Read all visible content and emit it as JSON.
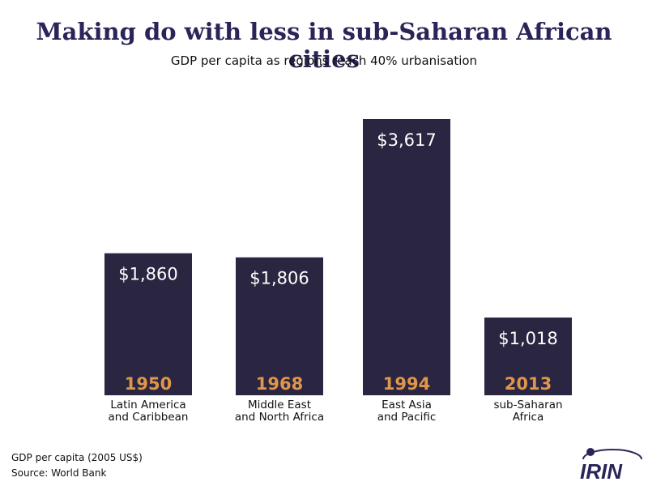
{
  "header": {
    "title": "Making do with less in sub-Saharan African cities",
    "subtitle": "GDP per capita as regions reach 40% urbanisation"
  },
  "chart_data": {
    "type": "bar",
    "title": "Making do with less in sub-Saharan African cities",
    "subtitle": "GDP per capita as regions reach 40% urbanisation",
    "categories": [
      [
        "Latin America",
        "and Caribbean"
      ],
      [
        "Middle East",
        "and North Africa"
      ],
      [
        "East Asia",
        "and Pacific"
      ],
      [
        "sub-Saharan",
        "Africa"
      ]
    ],
    "years": [
      "1950",
      "1968",
      "1994",
      "2013"
    ],
    "values": [
      1860,
      1806,
      3617,
      1018
    ],
    "value_labels": [
      "$1,860",
      "$1,806",
      "$3,617",
      "$1,018"
    ],
    "ylim": [
      0,
      3617
    ],
    "grid": false,
    "colors": {
      "bar": "#2a2540",
      "year": "#e0964a",
      "title": "#2a2558"
    }
  },
  "footer": {
    "unit_note": "GDP per capita (2005 US$)",
    "source": "Source: World Bank",
    "logo_text": "IRIN"
  }
}
